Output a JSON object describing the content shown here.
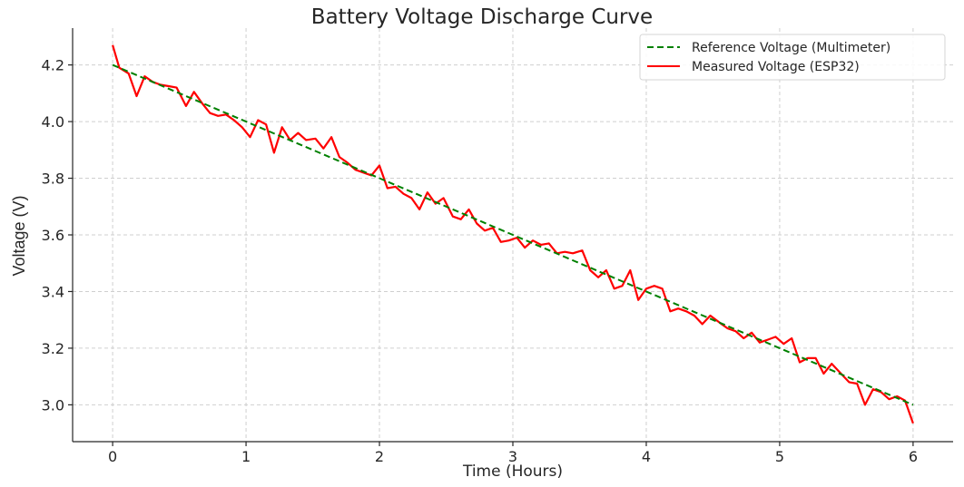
{
  "chart_data": {
    "type": "line",
    "title": "Battery Voltage Discharge Curve",
    "xlabel": "Time (Hours)",
    "ylabel": "Voltage (V)",
    "xlim": [
      -0.3,
      6.3
    ],
    "ylim": [
      2.87,
      4.33
    ],
    "xticks": [
      0,
      1,
      2,
      3,
      4,
      5,
      6
    ],
    "xtick_labels": [
      "0",
      "1",
      "2",
      "3",
      "4",
      "5",
      "6"
    ],
    "yticks": [
      3.0,
      3.2,
      3.4,
      3.6,
      3.8,
      4.0,
      4.2
    ],
    "ytick_labels": [
      "3.0",
      "3.2",
      "3.4",
      "3.6",
      "3.8",
      "4.0",
      "4.2"
    ],
    "grid": true,
    "legend_position": "top-right",
    "series": [
      {
        "name": "Reference Voltage (Multimeter)",
        "color": "#008000",
        "style": "dashed",
        "x": [
          0,
          6
        ],
        "y": [
          4.2,
          3.0
        ]
      },
      {
        "name": "Measured Voltage (ESP32)",
        "color": "#ff0000",
        "style": "solid",
        "x": [
          0,
          0.05,
          0.12,
          0.18,
          0.24,
          0.3,
          0.36,
          0.42,
          0.48,
          0.55,
          0.61,
          0.67,
          0.73,
          0.79,
          0.85,
          0.91,
          0.97,
          1.03,
          1.09,
          1.15,
          1.21,
          1.27,
          1.33,
          1.39,
          1.45,
          1.52,
          1.58,
          1.64,
          1.7,
          1.76,
          1.82,
          1.88,
          1.94,
          2.0,
          2.06,
          2.12,
          2.18,
          2.24,
          2.3,
          2.36,
          2.42,
          2.48,
          2.55,
          2.61,
          2.67,
          2.73,
          2.79,
          2.85,
          2.91,
          2.97,
          3.03,
          3.09,
          3.15,
          3.21,
          3.27,
          3.33,
          3.39,
          3.45,
          3.52,
          3.58,
          3.64,
          3.7,
          3.76,
          3.82,
          3.88,
          3.94,
          4.0,
          4.06,
          4.12,
          4.18,
          4.24,
          4.3,
          4.36,
          4.42,
          4.48,
          4.55,
          4.61,
          4.67,
          4.73,
          4.79,
          4.85,
          4.91,
          4.97,
          5.03,
          5.09,
          5.15,
          5.21,
          5.27,
          5.33,
          5.39,
          5.45,
          5.52,
          5.58,
          5.64,
          5.7,
          5.76,
          5.82,
          5.88,
          5.94,
          6.0
        ],
        "y": [
          4.27,
          4.19,
          4.17,
          4.09,
          4.16,
          4.14,
          4.13,
          4.125,
          4.12,
          4.055,
          4.105,
          4.065,
          4.03,
          4.02,
          4.025,
          4.005,
          3.98,
          3.945,
          4.005,
          3.99,
          3.89,
          3.98,
          3.935,
          3.96,
          3.935,
          3.94,
          3.905,
          3.945,
          3.875,
          3.855,
          3.83,
          3.82,
          3.81,
          3.845,
          3.765,
          3.77,
          3.745,
          3.73,
          3.69,
          3.75,
          3.71,
          3.73,
          3.665,
          3.655,
          3.69,
          3.64,
          3.615,
          3.625,
          3.575,
          3.58,
          3.59,
          3.555,
          3.58,
          3.565,
          3.57,
          3.535,
          3.54,
          3.535,
          3.545,
          3.475,
          3.45,
          3.475,
          3.41,
          3.42,
          3.475,
          3.37,
          3.41,
          3.42,
          3.41,
          3.33,
          3.34,
          3.33,
          3.315,
          3.285,
          3.315,
          3.29,
          3.27,
          3.26,
          3.235,
          3.255,
          3.22,
          3.23,
          3.24,
          3.215,
          3.235,
          3.15,
          3.165,
          3.165,
          3.11,
          3.145,
          3.115,
          3.08,
          3.075,
          3.0,
          3.055,
          3.045,
          3.02,
          3.03,
          3.015,
          2.935
        ]
      }
    ]
  }
}
